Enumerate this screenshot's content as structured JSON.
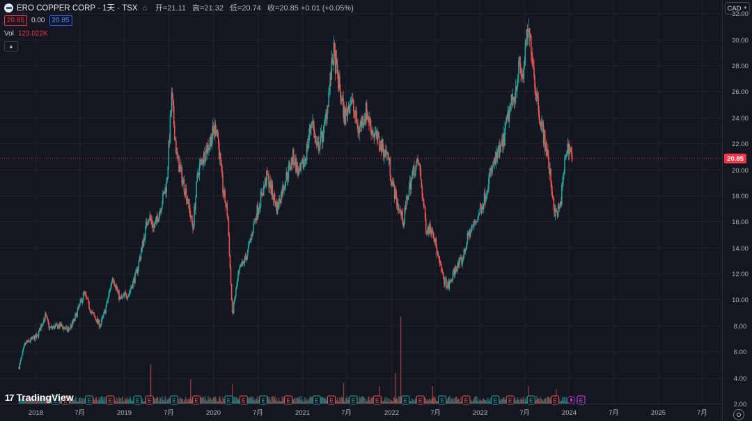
{
  "header": {
    "symbol_title": "ERO COPPER CORP · 1天 · TSX",
    "open_label": "开=21.11",
    "high_label": "高=21.32",
    "low_label": "低=20.74",
    "close_label": "收=20.85 +0.01 (+0.05%)"
  },
  "trade": {
    "sell_price": "20.85",
    "spread": "0.00",
    "buy_price": "20.85"
  },
  "volume": {
    "label": "Vol",
    "value": "123.022K"
  },
  "currency": "CAD",
  "last_price_label": "20.85",
  "brand": "TradingView",
  "colors": {
    "up": "#26a69a",
    "down": "#ef5350",
    "background": "#131722",
    "grid": "#1e222d",
    "axis_text": "#b2b5be",
    "last_price": "#f23645"
  },
  "chart_data": {
    "type": "candlestick",
    "title": "ERO COPPER CORP · 1天 · TSX",
    "ylim": [
      2.0,
      32.5
    ],
    "y_ticks": [
      32,
      30,
      28,
      26,
      24,
      22,
      20,
      18,
      16,
      14,
      12,
      10,
      8,
      6,
      4,
      2
    ],
    "y_tick_labels": [
      "32.00",
      "30.00",
      "28.00",
      "26.00",
      "24.00",
      "22.00",
      "20.00",
      "18.00",
      "16.00",
      "14.00",
      "12.00",
      "10.00",
      "8.00",
      "6.00",
      "4.00",
      "2.00"
    ],
    "x_range": [
      "2017-09-01",
      "2025-09-01"
    ],
    "x_ticks": [
      {
        "date": "2018-01-01",
        "label": "2018"
      },
      {
        "date": "2018-07-01",
        "label": "7月"
      },
      {
        "date": "2019-01-01",
        "label": "2019"
      },
      {
        "date": "2019-07-01",
        "label": "7月"
      },
      {
        "date": "2020-01-01",
        "label": "2020"
      },
      {
        "date": "2020-07-01",
        "label": "7月"
      },
      {
        "date": "2021-01-01",
        "label": "2021"
      },
      {
        "date": "2021-07-01",
        "label": "7月"
      },
      {
        "date": "2022-01-01",
        "label": "2022"
      },
      {
        "date": "2022-07-01",
        "label": "7月"
      },
      {
        "date": "2023-01-01",
        "label": "2023"
      },
      {
        "date": "2023-07-01",
        "label": "7月"
      },
      {
        "date": "2024-01-01",
        "label": "2024"
      },
      {
        "date": "2024-07-01",
        "label": "7月"
      },
      {
        "date": "2025-01-01",
        "label": "2025"
      },
      {
        "date": "2025-07-01",
        "label": "7月"
      }
    ],
    "last_price": 20.85,
    "price_path": [
      [
        "2017-10-26",
        4.8
      ],
      [
        "2017-11-20",
        6.6
      ],
      [
        "2018-01-10",
        7.2
      ],
      [
        "2018-02-10",
        8.8
      ],
      [
        "2018-03-01",
        7.8
      ],
      [
        "2018-04-15",
        8.0
      ],
      [
        "2018-05-15",
        7.6
      ],
      [
        "2018-06-10",
        8.4
      ],
      [
        "2018-07-20",
        10.5
      ],
      [
        "2018-08-20",
        9.0
      ],
      [
        "2018-09-25",
        8.0
      ],
      [
        "2018-10-20",
        9.5
      ],
      [
        "2018-11-15",
        11.8
      ],
      [
        "2018-12-15",
        10.0
      ],
      [
        "2019-01-20",
        10.5
      ],
      [
        "2019-02-20",
        12.0
      ],
      [
        "2019-03-15",
        14.0
      ],
      [
        "2019-04-10",
        16.5
      ],
      [
        "2019-05-05",
        15.5
      ],
      [
        "2019-06-05",
        17.5
      ],
      [
        "2019-06-25",
        19.0
      ],
      [
        "2019-07-15",
        25.5
      ],
      [
        "2019-08-05",
        21.0
      ],
      [
        "2019-08-25",
        19.5
      ],
      [
        "2019-09-15",
        18.0
      ],
      [
        "2019-10-10",
        15.5
      ],
      [
        "2019-11-01",
        20.0
      ],
      [
        "2019-12-15",
        22.0
      ],
      [
        "2020-01-15",
        23.5
      ],
      [
        "2020-02-10",
        18.5
      ],
      [
        "2020-03-01",
        16.5
      ],
      [
        "2020-03-20",
        8.8
      ],
      [
        "2020-04-15",
        12.0
      ],
      [
        "2020-05-20",
        13.5
      ],
      [
        "2020-06-25",
        16.5
      ],
      [
        "2020-08-10",
        19.5
      ],
      [
        "2020-09-20",
        17.0
      ],
      [
        "2020-10-20",
        19.0
      ],
      [
        "2020-11-25",
        21.0
      ],
      [
        "2020-12-20",
        19.5
      ],
      [
        "2021-01-15",
        21.0
      ],
      [
        "2021-02-10",
        24.0
      ],
      [
        "2021-03-01",
        21.5
      ],
      [
        "2021-04-01",
        23.0
      ],
      [
        "2021-05-10",
        29.0
      ],
      [
        "2021-06-05",
        26.0
      ],
      [
        "2021-06-25",
        24.0
      ],
      [
        "2021-07-20",
        25.5
      ],
      [
        "2021-08-20",
        23.0
      ],
      [
        "2021-09-20",
        24.5
      ],
      [
        "2021-10-15",
        23.0
      ],
      [
        "2021-11-15",
        22.0
      ],
      [
        "2021-12-20",
        21.0
      ],
      [
        "2022-01-05",
        19.0
      ],
      [
        "2022-01-25",
        17.5
      ],
      [
        "2022-02-20",
        16.0
      ],
      [
        "2022-03-15",
        18.5
      ],
      [
        "2022-04-05",
        20.0
      ],
      [
        "2022-04-25",
        20.5
      ],
      [
        "2022-05-10",
        18.0
      ],
      [
        "2022-05-25",
        15.5
      ],
      [
        "2022-06-20",
        15.5
      ],
      [
        "2022-07-15",
        13.0
      ],
      [
        "2022-08-05",
        11.5
      ],
      [
        "2022-08-25",
        11.0
      ],
      [
        "2022-09-25",
        12.5
      ],
      [
        "2022-10-20",
        13.0
      ],
      [
        "2022-11-15",
        15.0
      ],
      [
        "2022-12-15",
        16.0
      ],
      [
        "2023-01-15",
        17.5
      ],
      [
        "2023-02-10",
        19.5
      ],
      [
        "2023-03-01",
        20.5
      ],
      [
        "2023-04-05",
        22.0
      ],
      [
        "2023-05-01",
        24.5
      ],
      [
        "2023-05-25",
        26.0
      ],
      [
        "2023-06-10",
        28.0
      ],
      [
        "2023-06-25",
        27.0
      ],
      [
        "2023-07-15",
        30.5
      ],
      [
        "2023-08-01",
        29.5
      ],
      [
        "2023-08-15",
        26.5
      ],
      [
        "2023-09-05",
        24.0
      ],
      [
        "2023-10-01",
        21.5
      ],
      [
        "2023-10-20",
        19.0
      ],
      [
        "2023-11-05",
        16.5
      ],
      [
        "2023-11-25",
        17.0
      ],
      [
        "2023-12-10",
        19.5
      ],
      [
        "2023-12-20",
        21.5
      ],
      [
        "2024-01-05",
        21.8
      ],
      [
        "2024-01-15",
        20.85
      ]
    ],
    "volume_axis_max": 12,
    "volume_spikes": [
      [
        "2019-04-20",
        4.5
      ],
      [
        "2019-10-01",
        2.8
      ],
      [
        "2020-03-20",
        2.2
      ],
      [
        "2021-06-20",
        2.4
      ],
      [
        "2021-11-15",
        2.0
      ],
      [
        "2022-01-20",
        3.5
      ],
      [
        "2022-02-10",
        10.0
      ],
      [
        "2022-06-20",
        2.0
      ],
      [
        "2023-07-20",
        2.0
      ],
      [
        "2023-11-10",
        1.7
      ]
    ],
    "events": [
      {
        "date": "2018-03-25",
        "label": "E"
      },
      {
        "date": "2018-05-05",
        "label": "E"
      },
      {
        "date": "2018-08-10",
        "label": "E"
      },
      {
        "date": "2018-11-05",
        "label": "E"
      },
      {
        "date": "2019-02-25",
        "label": "E"
      },
      {
        "date": "2019-04-15",
        "label": "E"
      },
      {
        "date": "2019-07-25",
        "label": "E"
      },
      {
        "date": "2019-10-25",
        "label": "E"
      },
      {
        "date": "2020-03-05",
        "label": "E"
      },
      {
        "date": "2020-05-05",
        "label": "E"
      },
      {
        "date": "2020-07-25",
        "label": "E"
      },
      {
        "date": "2020-11-05",
        "label": "E"
      },
      {
        "date": "2021-03-01",
        "label": "E"
      },
      {
        "date": "2021-05-01",
        "label": "E"
      },
      {
        "date": "2021-07-30",
        "label": "E"
      },
      {
        "date": "2021-11-05",
        "label": "E"
      },
      {
        "date": "2022-03-01",
        "label": "E"
      },
      {
        "date": "2022-05-01",
        "label": "E"
      },
      {
        "date": "2022-07-30",
        "label": "E"
      },
      {
        "date": "2022-11-05",
        "label": "E"
      },
      {
        "date": "2023-03-05",
        "label": "E"
      },
      {
        "date": "2023-05-05",
        "label": "E"
      },
      {
        "date": "2023-07-30",
        "label": "E"
      },
      {
        "date": "2023-11-05",
        "label": "E"
      },
      {
        "date": "2024-02-20",
        "label": "E"
      }
    ],
    "special_marker_date": "2024-01-10"
  }
}
